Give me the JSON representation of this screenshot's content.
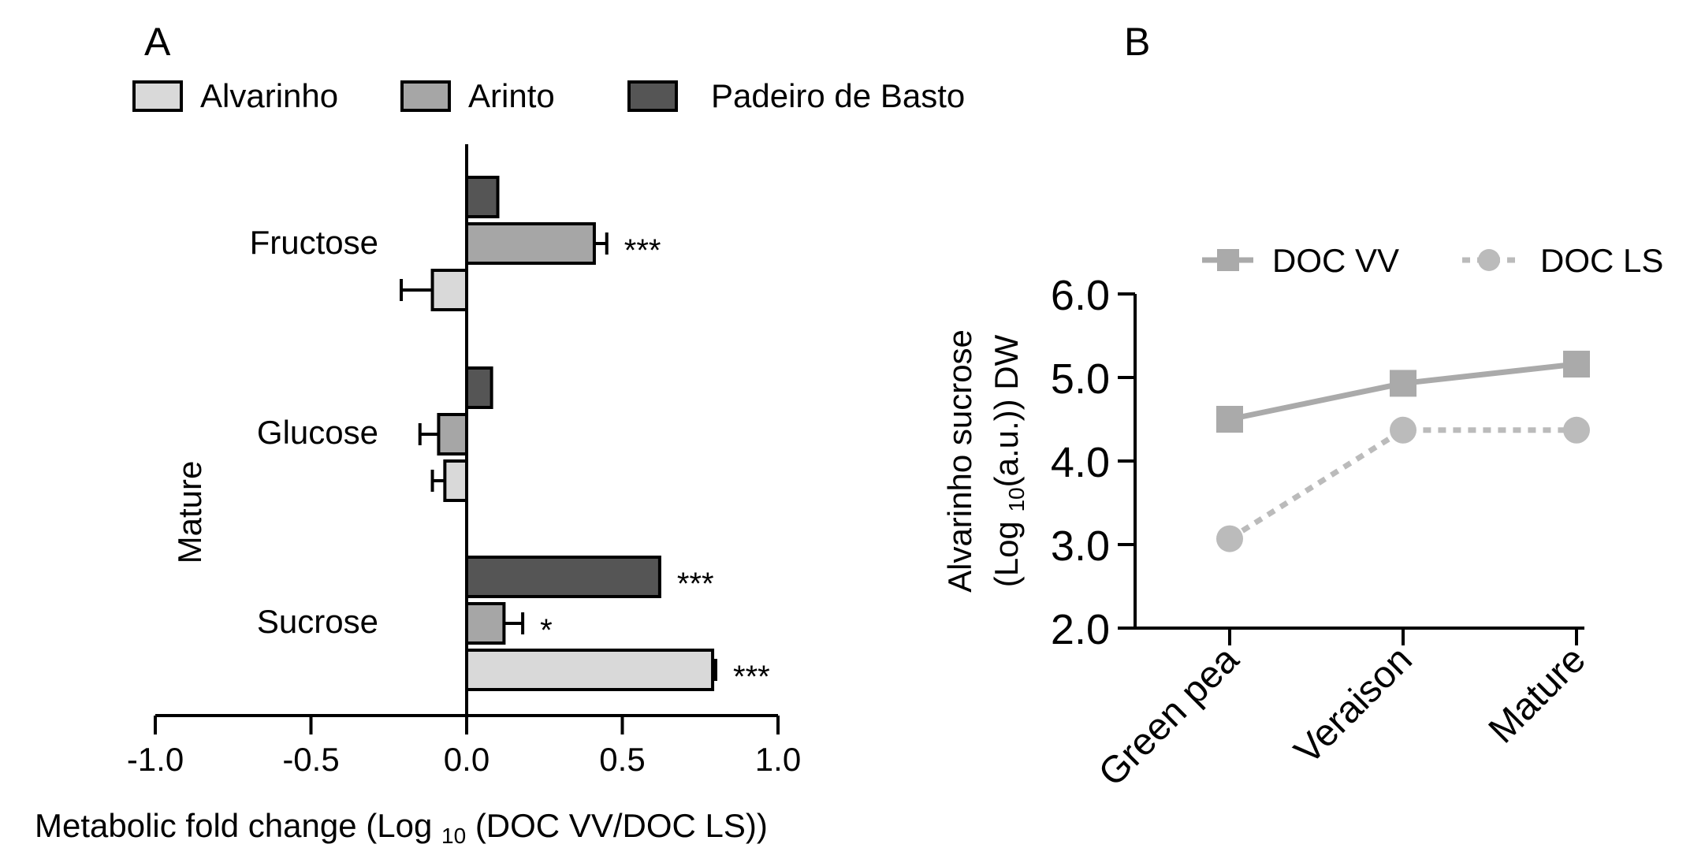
{
  "chart_data": [
    {
      "panel_label": "A",
      "type": "bar",
      "orientation": "horizontal",
      "group_label": "Mature",
      "categories": [
        "Fructose",
        "Glucose",
        "Sucrose"
      ],
      "series": [
        {
          "name": "Alvarinho",
          "color": "#d9d9d9",
          "values": [
            -0.11,
            -0.07,
            0.79
          ],
          "errors": [
            0.1,
            0.04,
            0.01
          ],
          "significance": [
            "",
            "",
            "***"
          ]
        },
        {
          "name": "Arinto",
          "color": "#a6a6a6",
          "values": [
            0.41,
            -0.09,
            0.12
          ],
          "errors": [
            0.04,
            0.06,
            0.06
          ],
          "significance": [
            "***",
            "",
            "*"
          ]
        },
        {
          "name": "Padeiro de Basto",
          "color": "#555555",
          "values": [
            0.1,
            0.08,
            0.62
          ],
          "errors": [
            0.0,
            0.0,
            0.0
          ],
          "significance": [
            "",
            "",
            "***"
          ]
        }
      ],
      "xlabel": {
        "pre": "Metabolic fold change (Log ",
        "sub": "10",
        "post": " (DOC VV/DOC LS))"
      },
      "xlim": [
        -1.0,
        1.0
      ],
      "xticks": [
        "-1.0",
        "-0.5",
        "0.0",
        "0.5",
        "1.0"
      ],
      "legend_position": "top"
    },
    {
      "panel_label": "B",
      "type": "line",
      "categories": [
        "Green pea",
        "Veraison",
        "Mature"
      ],
      "series": [
        {
          "name": "DOC VV",
          "values": [
            4.5,
            4.93,
            5.16
          ],
          "color": "#aaaaaa",
          "marker": "square",
          "line_style": "solid"
        },
        {
          "name": "DOC LS",
          "values": [
            3.07,
            4.37,
            4.37
          ],
          "color": "#bbbbbb",
          "marker": "circle",
          "line_style": "dotted"
        }
      ],
      "ylabel": {
        "line1": "Alvarinho sucrose",
        "pre": "(Log ",
        "sub": "10",
        "post": "(a.u.)) DW"
      },
      "ylim": [
        2.0,
        6.0
      ],
      "yticks": [
        "2.0",
        "3.0",
        "4.0",
        "5.0",
        "6.0"
      ],
      "legend_position": "top"
    }
  ]
}
